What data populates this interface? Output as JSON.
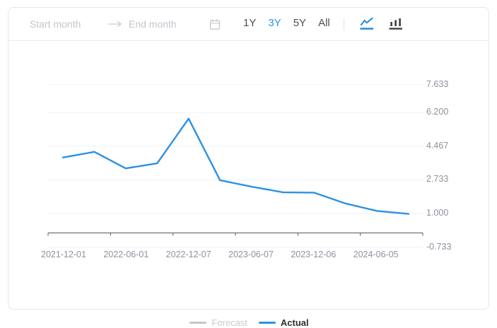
{
  "toolbar": {
    "start_placeholder": "Start month",
    "end_placeholder": "End month",
    "range_icons": [
      "arrow-right-icon",
      "calendar-icon"
    ],
    "periods": [
      {
        "label": "1Y",
        "active": false
      },
      {
        "label": "3Y",
        "active": true
      },
      {
        "label": "5Y",
        "active": false
      },
      {
        "label": "All",
        "active": false
      }
    ],
    "chart_type_icons": [
      {
        "name": "line-chart-icon",
        "active": true
      },
      {
        "name": "bar-chart-icon",
        "active": false
      }
    ]
  },
  "colors": {
    "accent_blue": "#2e90e2",
    "grid_line": "#eef1f7",
    "axis_line": "#565b60",
    "tick_text": "#8d929c",
    "card_border": "#e5e8e8",
    "inactive_gray": "#c3c6cb",
    "icon_dark": "#3c4043"
  },
  "chart_data": {
    "type": "line",
    "title": "",
    "xlabel": "",
    "ylabel": "",
    "x_tick_labels": [
      "2021-12-01",
      "2022-06-01",
      "2022-12-07",
      "2023-06-07",
      "2023-12-06",
      "2024-06-05"
    ],
    "x_label_every_n_points": 2,
    "y_tick_labels": [
      "-0.733",
      "1.000",
      "2.733",
      "4.467",
      "6.200",
      "7.633"
    ],
    "ylim": [
      -0.733,
      7.633
    ],
    "grid": true,
    "legend_position": "bottom",
    "series": [
      {
        "name": "Forecast",
        "color": "#c3c6cb",
        "active": false,
        "values": []
      },
      {
        "name": "Actual",
        "color": "#2e90e2",
        "active": true,
        "values": [
          3.88,
          4.17,
          3.32,
          3.58,
          5.88,
          2.71,
          2.38,
          2.09,
          2.07,
          1.51,
          1.13,
          0.98
        ]
      }
    ]
  }
}
